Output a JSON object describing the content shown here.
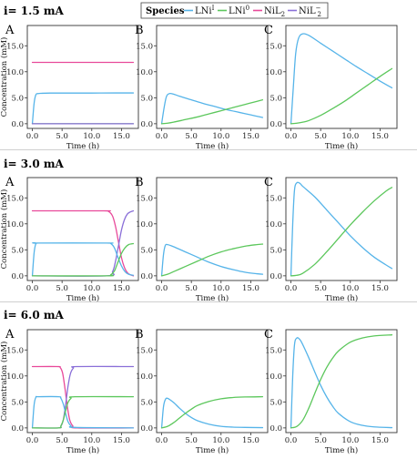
{
  "colors": {
    "LNi1": "#56b4e9",
    "LNi0": "#5cc75c",
    "NiL2": "#e8499a",
    "NiL2m": "#8a6fd8"
  },
  "legend": {
    "title": "Species",
    "items": [
      {
        "key": "LNi1",
        "base": "LNi",
        "sup": "I",
        "sub": ""
      },
      {
        "key": "LNi0",
        "base": "LNi",
        "sup": "0",
        "sub": ""
      },
      {
        "key": "NiL2",
        "base": "NiL",
        "sup": "",
        "sub": "2"
      },
      {
        "key": "NiL2m",
        "base": "NiL",
        "sup": "−",
        "sub": "2"
      }
    ]
  },
  "rows": [
    {
      "title": "i=  1.5 mA"
    },
    {
      "title": "i=  3.0 mA"
    },
    {
      "title": "i=  6.0 mA"
    }
  ],
  "axes": {
    "xlabel": "Time  (h)",
    "ylabel": "Concentration  (mM)",
    "xticks": [
      "0.0",
      "5.0",
      "10.0",
      "15.0"
    ],
    "yticks": [
      "0.0",
      "5.0",
      "10.0",
      "15.0"
    ]
  },
  "chart_data": [
    {
      "type": "line",
      "panel": "A",
      "row": "i=  1.5 mA",
      "xlabel": "Time  (h)",
      "ylabel": "Concentration  (mM)",
      "xlim": [
        -0.85,
        17.85
      ],
      "ylim": [
        -0.9,
        18.9
      ],
      "series": [
        {
          "key": "NiL2",
          "x": [
            0,
            17
          ],
          "y": [
            11.8,
            11.8
          ]
        },
        {
          "key": "LNi1",
          "x": [
            0,
            0.3,
            0.6,
            1.0,
            1.5,
            3,
            6,
            10,
            14,
            17
          ],
          "y": [
            0.0,
            4.0,
            5.6,
            5.8,
            5.85,
            5.9,
            5.9,
            5.9,
            5.92,
            5.92
          ]
        },
        {
          "key": "LNi0",
          "x": [
            0,
            17
          ],
          "y": [
            0.0,
            0.0
          ]
        },
        {
          "key": "NiL2m",
          "x": [
            0,
            17
          ],
          "y": [
            0.0,
            0.0
          ]
        }
      ]
    },
    {
      "type": "line",
      "panel": "B",
      "row": "i=  1.5 mA",
      "xlabel": "Time  (h)",
      "ylabel": "",
      "xlim": [
        -0.85,
        17.85
      ],
      "ylim": [
        -0.9,
        18.9
      ],
      "series": [
        {
          "key": "LNi1",
          "x": [
            0,
            0.4,
            0.8,
            1.3,
            2,
            3,
            5,
            7,
            9,
            11,
            13,
            15,
            17
          ],
          "y": [
            0.0,
            3.0,
            5.2,
            5.8,
            5.7,
            5.3,
            4.6,
            3.9,
            3.3,
            2.7,
            2.2,
            1.7,
            1.2
          ]
        },
        {
          "key": "LNi0",
          "x": [
            0,
            1,
            2,
            4,
            6,
            8,
            10,
            12,
            14,
            16,
            17
          ],
          "y": [
            0.0,
            0.1,
            0.3,
            0.8,
            1.3,
            1.9,
            2.5,
            3.1,
            3.7,
            4.3,
            4.6
          ]
        }
      ]
    },
    {
      "type": "line",
      "panel": "C",
      "row": "i=  1.5 mA",
      "xlabel": "Time  (h)",
      "ylabel": "",
      "xlim": [
        -0.85,
        17.85
      ],
      "ylim": [
        -0.9,
        18.9
      ],
      "series": [
        {
          "key": "LNi1",
          "x": [
            0,
            0.4,
            0.8,
            1.3,
            2,
            3,
            5,
            7,
            9,
            11,
            13,
            15,
            17
          ],
          "y": [
            0.0,
            7.0,
            13.5,
            16.5,
            17.3,
            17.0,
            15.5,
            14.0,
            12.5,
            11.0,
            9.6,
            8.2,
            6.9
          ]
        },
        {
          "key": "LNi0",
          "x": [
            0,
            1,
            2,
            3,
            5,
            7,
            9,
            11,
            13,
            15,
            17
          ],
          "y": [
            0.0,
            0.1,
            0.3,
            0.6,
            1.6,
            2.9,
            4.3,
            5.9,
            7.5,
            9.1,
            10.6
          ]
        }
      ]
    },
    {
      "type": "line",
      "panel": "A",
      "row": "i=  3.0 mA",
      "xlabel": "Time  (h)",
      "ylabel": "Concentration  (mM)",
      "xlim": [
        -0.85,
        17.85
      ],
      "ylim": [
        -0.9,
        18.9
      ],
      "series": [
        {
          "key": "NiL2",
          "x": [
            0,
            12,
            12.8,
            13.5,
            14,
            14.5,
            15,
            15.5,
            16,
            16.5,
            17
          ],
          "y": [
            12.5,
            12.5,
            12.4,
            11.5,
            9.5,
            6.5,
            3.5,
            1.6,
            0.6,
            0.2,
            0.0
          ]
        },
        {
          "key": "NiL2m",
          "x": [
            0,
            12.5,
            13.5,
            14,
            14.5,
            15,
            15.5,
            16,
            16.5,
            17
          ],
          "y": [
            0.0,
            0.0,
            0.8,
            2.8,
            5.8,
            8.8,
            10.8,
            11.9,
            12.3,
            12.5
          ]
        },
        {
          "key": "LNi1",
          "x": [
            0,
            0.3,
            0.6,
            1,
            12.5,
            13.2,
            13.8,
            14.4,
            15,
            15.6,
            16.2,
            17
          ],
          "y": [
            0.0,
            4.5,
            6.2,
            6.3,
            6.3,
            6.2,
            5.4,
            3.6,
            1.9,
            0.8,
            0.3,
            0.1
          ]
        },
        {
          "key": "LNi0",
          "x": [
            0,
            12.5,
            13.2,
            13.8,
            14.4,
            15,
            15.6,
            16.2,
            17
          ],
          "y": [
            0.0,
            0.0,
            0.2,
            0.9,
            2.6,
            4.3,
            5.4,
            6.0,
            6.2
          ]
        }
      ]
    },
    {
      "type": "line",
      "panel": "B",
      "row": "i=  3.0 mA",
      "xlabel": "Time  (h)",
      "ylabel": "",
      "xlim": [
        -0.85,
        17.85
      ],
      "ylim": [
        -0.9,
        18.9
      ],
      "series": [
        {
          "key": "LNi1",
          "x": [
            0,
            0.3,
            0.6,
            1,
            2,
            4,
            6,
            8,
            10,
            12,
            14,
            16,
            17
          ],
          "y": [
            0.0,
            4.0,
            5.8,
            6.0,
            5.6,
            4.6,
            3.6,
            2.6,
            1.8,
            1.2,
            0.7,
            0.4,
            0.3
          ]
        },
        {
          "key": "LNi0",
          "x": [
            0,
            1,
            2,
            4,
            6,
            8,
            10,
            12,
            14,
            16,
            17
          ],
          "y": [
            0.0,
            0.3,
            0.8,
            1.8,
            2.8,
            3.8,
            4.6,
            5.2,
            5.7,
            6.0,
            6.1
          ]
        }
      ]
    },
    {
      "type": "line",
      "panel": "C",
      "row": "i=  3.0 mA",
      "xlabel": "Time  (h)",
      "ylabel": "",
      "xlim": [
        -0.85,
        17.85
      ],
      "ylim": [
        -0.9,
        18.9
      ],
      "series": [
        {
          "key": "LNi1",
          "x": [
            0,
            0.3,
            0.6,
            1,
            1.5,
            2,
            4,
            6,
            8,
            10,
            12,
            14,
            16,
            17
          ],
          "y": [
            0.0,
            10.0,
            16.5,
            17.9,
            17.8,
            17.2,
            15.2,
            12.7,
            10.2,
            7.7,
            5.5,
            3.6,
            2.1,
            1.4
          ]
        },
        {
          "key": "LNi0",
          "x": [
            0,
            1,
            2,
            4,
            6,
            8,
            10,
            12,
            14,
            16,
            17
          ],
          "y": [
            0.0,
            0.1,
            0.5,
            2.2,
            4.6,
            7.2,
            9.8,
            12.2,
            14.4,
            16.3,
            17.0
          ]
        }
      ]
    },
    {
      "type": "line",
      "panel": "A",
      "row": "i=  6.0 mA",
      "xlabel": "Time  (h)",
      "ylabel": "Concentration  (mM)",
      "xlim": [
        -0.85,
        17.85
      ],
      "ylim": [
        -0.9,
        18.9
      ],
      "series": [
        {
          "key": "NiL2",
          "x": [
            0,
            4.2,
            4.7,
            5.1,
            5.5,
            5.9,
            6.3,
            6.8,
            7.5,
            17
          ],
          "y": [
            11.8,
            11.8,
            11.6,
            10.5,
            7.5,
            4.0,
            1.5,
            0.4,
            0.0,
            0.0
          ]
        },
        {
          "key": "NiL2m",
          "x": [
            0,
            4.4,
            4.8,
            5.2,
            5.6,
            6.0,
            6.4,
            6.9,
            7.5,
            17
          ],
          "y": [
            0.0,
            0.0,
            0.3,
            1.5,
            4.5,
            8.0,
            10.4,
            11.5,
            11.8,
            11.8
          ]
        },
        {
          "key": "LNi1",
          "x": [
            0,
            0.3,
            0.6,
            1,
            4.4,
            4.8,
            5.2,
            5.6,
            6.0,
            6.5,
            7.2,
            17
          ],
          "y": [
            0.0,
            4.5,
            5.9,
            6.0,
            6.0,
            5.7,
            4.6,
            2.8,
            1.2,
            0.4,
            0.1,
            0.0
          ]
        },
        {
          "key": "LNi0",
          "x": [
            0,
            4.4,
            4.8,
            5.2,
            5.6,
            6.0,
            6.5,
            7.2,
            17
          ],
          "y": [
            0.0,
            0.0,
            0.4,
            1.5,
            3.3,
            4.9,
            5.7,
            6.0,
            6.0
          ]
        }
      ]
    },
    {
      "type": "line",
      "panel": "B",
      "row": "i=  6.0 mA",
      "xlabel": "Time  (h)",
      "ylabel": "",
      "xlim": [
        -0.85,
        17.85
      ],
      "ylim": [
        -0.9,
        18.9
      ],
      "series": [
        {
          "key": "LNi1",
          "x": [
            0,
            0.3,
            0.6,
            1,
            2,
            3,
            4,
            5,
            6,
            8,
            10,
            12,
            14,
            17
          ],
          "y": [
            0.0,
            4.0,
            5.4,
            5.7,
            4.9,
            3.8,
            2.8,
            2.0,
            1.4,
            0.7,
            0.3,
            0.15,
            0.1,
            0.05
          ]
        },
        {
          "key": "LNi0",
          "x": [
            0,
            1,
            2,
            3,
            4,
            5,
            6,
            8,
            10,
            12,
            14,
            17
          ],
          "y": [
            0.0,
            0.3,
            1.0,
            1.9,
            2.8,
            3.6,
            4.3,
            5.1,
            5.6,
            5.85,
            5.95,
            6.0
          ]
        }
      ]
    },
    {
      "type": "line",
      "panel": "C",
      "row": "i=  6.0 mA",
      "xlabel": "Time  (h)",
      "ylabel": "",
      "xlim": [
        -0.85,
        17.85
      ],
      "ylim": [
        -0.9,
        18.9
      ],
      "series": [
        {
          "key": "LNi1",
          "x": [
            0,
            0.3,
            0.6,
            1,
            1.5,
            2,
            3,
            4,
            5,
            6,
            7,
            8,
            10,
            12,
            14,
            17
          ],
          "y": [
            0.0,
            10.0,
            16.0,
            17.3,
            17.0,
            16.0,
            13.5,
            10.8,
            8.2,
            6.0,
            4.2,
            2.8,
            1.2,
            0.5,
            0.2,
            0.05
          ]
        },
        {
          "key": "LNi0",
          "x": [
            0,
            1,
            2,
            3,
            4,
            5,
            6,
            7,
            8,
            10,
            12,
            14,
            17
          ],
          "y": [
            0.0,
            0.3,
            1.5,
            3.8,
            6.6,
            9.3,
            11.6,
            13.4,
            14.8,
            16.5,
            17.3,
            17.7,
            17.9
          ]
        }
      ]
    }
  ]
}
